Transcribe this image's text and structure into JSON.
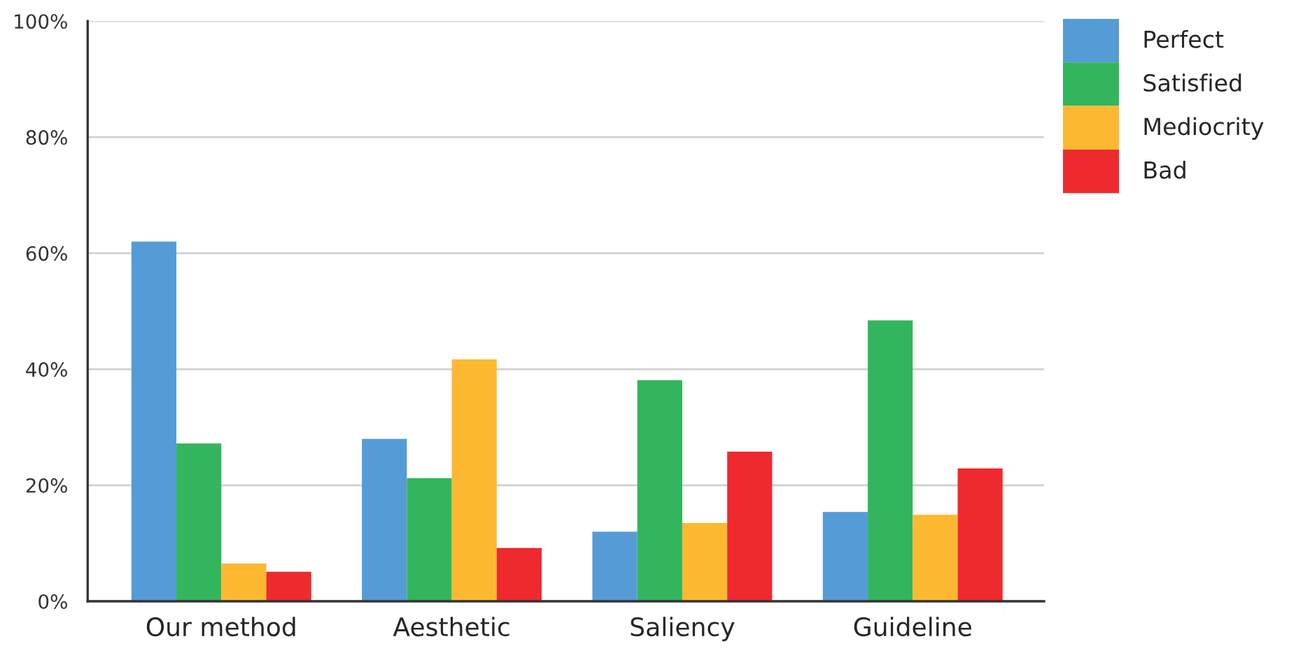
{
  "chart_data": {
    "type": "bar",
    "categories": [
      "Our method",
      "Aesthetic",
      "Saliency",
      "Guideline"
    ],
    "series": [
      {
        "name": "Perfect",
        "color": "#559bd6",
        "values": [
          62,
          28,
          12,
          15.4
        ]
      },
      {
        "name": "Satisfied",
        "color": "#33b55d",
        "values": [
          27.2,
          21.2,
          38.1,
          48.4
        ]
      },
      {
        "name": "Mediocrity",
        "color": "#fdb831",
        "values": [
          6.5,
          41.7,
          13.5,
          14.9
        ]
      },
      {
        "name": "Bad",
        "color": "#ee2a2e",
        "values": [
          5.1,
          9.2,
          25.8,
          22.9
        ]
      }
    ],
    "ylim": [
      0,
      100
    ],
    "yticks": [
      {
        "value": 0,
        "label": "0%"
      },
      {
        "value": 20,
        "label": "20%"
      },
      {
        "value": 40,
        "label": "40%"
      },
      {
        "value": 60,
        "label": "60%"
      },
      {
        "value": 80,
        "label": "80%"
      },
      {
        "value": 100,
        "label": "100%"
      }
    ],
    "grid": "y",
    "legend": "top right"
  }
}
